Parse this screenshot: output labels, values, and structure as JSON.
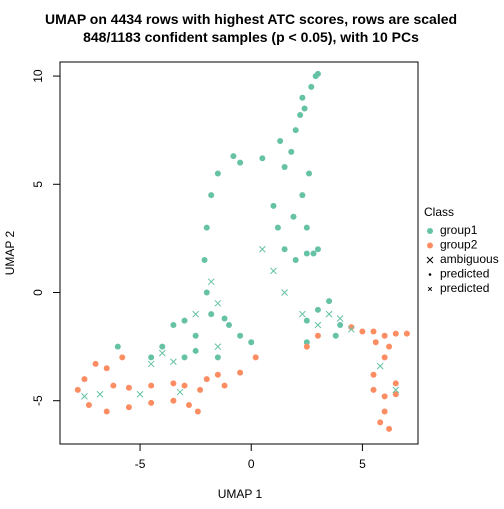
{
  "chart_data": {
    "type": "scatter",
    "title": "UMAP on 4434 rows with highest ATC scores, rows are scaled",
    "subtitle": "848/1183 confident samples (p < 0.05), with 10 PCs",
    "x_label": "UMAP 1",
    "y_label": "UMAP 2",
    "xlim": [
      -8.6,
      7.5
    ],
    "ylim": [
      -7.0,
      10.65
    ],
    "xticks": [
      -5,
      0,
      5
    ],
    "yticks": [
      -5,
      0,
      5,
      10
    ],
    "legend": {
      "title": "Class",
      "position": "right",
      "entries": [
        {
          "name": "group1",
          "color": "#66C2A5",
          "marker": "circle"
        },
        {
          "name": "group2",
          "color": "#FC8D62",
          "marker": "circle"
        },
        {
          "name": "ambiguous",
          "color": "#000000",
          "marker": "cross"
        },
        {
          "name": "predicted",
          "color": "#000000",
          "marker": "dot"
        },
        {
          "name": "predicted",
          "color": "#000000",
          "marker": "small-cross"
        }
      ]
    },
    "series": [
      {
        "name": "group1",
        "color": "#66C2A5",
        "marker": "circle",
        "x": [
          2.9,
          2.7,
          3.0,
          2.3,
          2.2,
          2.0,
          1.8,
          1.5,
          0.5,
          -0.5,
          -1.5,
          -1.8,
          -2.0,
          -2.1,
          -2.0,
          -1.8,
          -1.0,
          -0.5,
          0.0,
          1.0,
          1.2,
          1.5,
          2.0,
          2.5,
          2.5,
          2.3,
          2.6,
          2.8,
          3.0,
          -3.0,
          -3.5,
          -2.5,
          -4.0,
          -4.5,
          -6.0,
          -3.0,
          -2.5,
          -1.5,
          2.5,
          3.0,
          3.5,
          4.0,
          3.8,
          2.5,
          1.3,
          2.4,
          1.9,
          -1.2,
          -0.8
        ],
        "y": [
          10.0,
          9.5,
          10.1,
          9.0,
          8.2,
          7.5,
          6.5,
          5.8,
          6.2,
          6.0,
          5.5,
          4.5,
          3.0,
          1.5,
          0.0,
          -1.0,
          -1.5,
          -2.0,
          -2.3,
          4.0,
          3.0,
          2.0,
          1.5,
          1.8,
          3.0,
          4.5,
          5.5,
          1.8,
          2.0,
          -1.3,
          -1.5,
          -2.0,
          -2.5,
          -3.0,
          -2.5,
          -3.0,
          -2.7,
          -3.0,
          -1.3,
          -0.8,
          -0.4,
          -1.5,
          -2.0,
          -2.3,
          7.0,
          8.5,
          3.5,
          -1.2,
          6.3
        ]
      },
      {
        "name": "group2",
        "color": "#FC8D62",
        "marker": "circle",
        "x": [
          -7.5,
          -7.8,
          -7.3,
          -6.5,
          -5.5,
          -4.5,
          -3.5,
          -2.8,
          -2.4,
          -2.3,
          -3.0,
          -3.5,
          -4.5,
          -5.5,
          -6.2,
          -6.5,
          -5.8,
          -7.0,
          -2.0,
          -1.5,
          -0.5,
          0.2,
          -1.2,
          2.5,
          3.0,
          4.5,
          5.0,
          5.5,
          6.0,
          6.5,
          7.0,
          6.2,
          6.0,
          5.5,
          5.5,
          6.0,
          6.5,
          6.0,
          6.2,
          5.8,
          6.5,
          5.6
        ],
        "y": [
          -4.0,
          -4.5,
          -5.2,
          -5.5,
          -5.3,
          -5.1,
          -5.0,
          -5.2,
          -5.5,
          -4.5,
          -4.3,
          -4.2,
          -4.3,
          -4.4,
          -4.3,
          -3.5,
          -3.0,
          -3.3,
          -4.0,
          -3.8,
          -3.7,
          -3.0,
          -4.3,
          -2.5,
          -2.0,
          -1.6,
          -1.8,
          -1.8,
          -2.0,
          -1.9,
          -1.9,
          -2.5,
          -3.0,
          -3.8,
          -4.5,
          -4.8,
          -4.7,
          -5.5,
          -6.3,
          -6.0,
          -4.2,
          -2.3
        ]
      },
      {
        "name": "ambiguous",
        "color": "#66C2A5",
        "marker": "cross",
        "x": [
          -1.8,
          -1.5,
          -2.5,
          0.5,
          1.0,
          1.5,
          -4.5,
          -4.0,
          -3.5,
          -1.5,
          3.0,
          3.5,
          4.0,
          2.3,
          4.5,
          -7.5,
          -6.8,
          -3.2,
          6.5,
          5.8,
          -5.0
        ],
        "y": [
          0.5,
          -0.5,
          -1.0,
          2.0,
          1.0,
          0.0,
          -3.3,
          -2.8,
          -3.2,
          -2.5,
          -1.5,
          -1.0,
          -1.2,
          -1.0,
          -1.7,
          -4.8,
          -4.7,
          -4.6,
          -4.5,
          -3.4,
          -4.7
        ]
      }
    ]
  }
}
